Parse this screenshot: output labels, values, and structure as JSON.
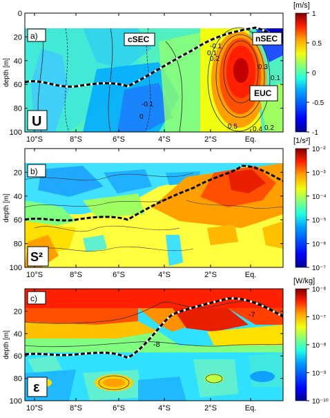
{
  "chart_data": [
    {
      "type": "heatmap",
      "panel_label": "a)",
      "quantity_symbol": "U",
      "ylabel": "depth [m]",
      "ylim": [
        100,
        0
      ],
      "yticks": [
        0,
        20,
        40,
        60,
        80,
        100
      ],
      "x_tick_labels": [
        "10°S",
        "8°S",
        "6°S",
        "4°S",
        "2°S",
        "Eq."
      ],
      "colorbar": {
        "unit": "[m/s]",
        "range": [
          -1,
          1
        ],
        "ticks": [
          "1",
          "0.5",
          "0",
          "-0.5",
          "-1"
        ]
      },
      "annotations": [
        "cSEC",
        "nSEC",
        "EUC"
      ],
      "contour_labels": [
        "-0.1",
        "-0.1",
        "0",
        "0.1",
        "0.2",
        "0.3",
        "0.4",
        "0.5",
        "0.2",
        "0.1"
      ]
    },
    {
      "type": "heatmap",
      "panel_label": "b)",
      "quantity_symbol": "S²",
      "ylabel": "depth [m]",
      "ylim": [
        100,
        0
      ],
      "yticks": [
        20,
        40,
        60,
        80,
        100
      ],
      "x_tick_labels": [
        "10°S",
        "8°S",
        "6°S",
        "4°S",
        "2°S",
        "Eq."
      ],
      "colorbar": {
        "unit": "[1/s²]",
        "range": [
          -7,
          -2
        ],
        "ticks": [
          "10⁻²",
          "10⁻³",
          "10⁻⁴",
          "10⁻⁵",
          "10⁻⁶",
          "10⁻⁷"
        ]
      }
    },
    {
      "type": "heatmap",
      "panel_label": "c)",
      "quantity_symbol": "ε",
      "ylabel": "depth [m]",
      "ylim": [
        100,
        0
      ],
      "yticks": [
        20,
        40,
        60,
        80,
        100
      ],
      "x_tick_labels": [
        "10°S",
        "8°S",
        "6°S",
        "4°S",
        "2°S",
        "Eq."
      ],
      "colorbar": {
        "unit": "[W/kg]",
        "range": [
          -10,
          -6
        ],
        "ticks": [
          "10⁻⁶",
          "10⁻⁷",
          "10⁻⁸",
          "10⁻⁹",
          "10⁻¹⁰"
        ]
      },
      "contour_labels": [
        "-7",
        "-8"
      ]
    }
  ],
  "colors": {
    "jet": [
      "#00008f",
      "#0000ff",
      "#00a0ff",
      "#20ffe0",
      "#80ff80",
      "#f0ff10",
      "#ffa000",
      "#ff2000",
      "#800000"
    ]
  }
}
